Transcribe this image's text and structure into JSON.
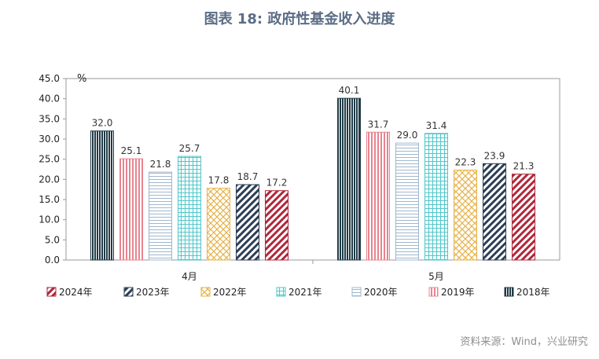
{
  "title": "图表 18: 政府性基金收入进度",
  "source": "资料来源：Wind，兴业研究",
  "chart_data": {
    "type": "bar",
    "unit": "%",
    "categories": [
      "4月",
      "5月"
    ],
    "ylim": [
      0,
      45
    ],
    "yticks": [
      "0.0",
      "5.0",
      "10.0",
      "15.0",
      "20.0",
      "25.0",
      "30.0",
      "35.0",
      "40.0",
      "45.0"
    ],
    "grid": false,
    "legend_position": "bottom",
    "series": [
      {
        "name": "2018年",
        "values": [
          32.0,
          40.1
        ],
        "labels": [
          "32.0",
          "40.1"
        ],
        "color": "#1f3a46",
        "pattern": "vlines-dense"
      },
      {
        "name": "2019年",
        "values": [
          25.1,
          31.7
        ],
        "labels": [
          "25.1",
          "31.7"
        ],
        "color": "#e8848f",
        "pattern": "vlines"
      },
      {
        "name": "2020年",
        "values": [
          21.8,
          29.0
        ],
        "labels": [
          "21.8",
          "29.0"
        ],
        "color": "#9fb8cf",
        "pattern": "hlines"
      },
      {
        "name": "2021年",
        "values": [
          25.7,
          31.4
        ],
        "labels": [
          "25.7",
          "31.4"
        ],
        "color": "#4fc6c9",
        "pattern": "grid"
      },
      {
        "name": "2022年",
        "values": [
          17.8,
          22.3
        ],
        "labels": [
          "17.8",
          "22.3"
        ],
        "color": "#e6b24a",
        "pattern": "cross"
      },
      {
        "name": "2023年",
        "values": [
          18.7,
          23.9
        ],
        "labels": [
          "18.7",
          "23.9"
        ],
        "color": "#2c3e55",
        "pattern": "diag"
      },
      {
        "name": "2024年",
        "values": [
          17.2,
          21.3
        ],
        "labels": [
          "17.2",
          "21.3"
        ],
        "color": "#b0273a",
        "pattern": "diag"
      }
    ],
    "legend_order": [
      "2024年",
      "2023年",
      "2022年",
      "2021年",
      "2020年",
      "2019年",
      "2018年"
    ]
  }
}
